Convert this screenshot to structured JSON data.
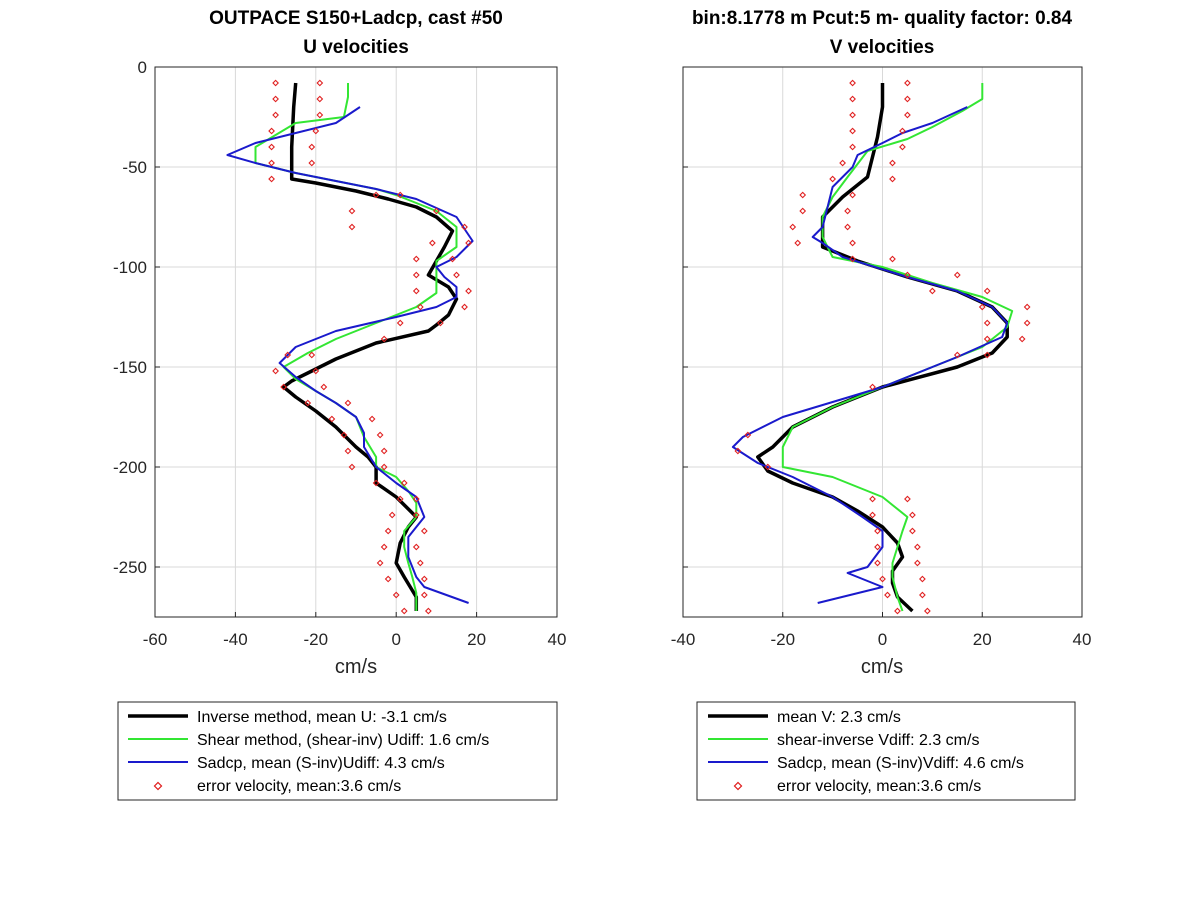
{
  "chart_data": [
    {
      "type": "line",
      "title": "OUTPACE S150+Ladcp, cast #50",
      "subtitle": "U velocities",
      "xlabel": "cm/s",
      "ylabel": "",
      "xlim": [
        -60,
        40
      ],
      "ylim": [
        -275,
        0
      ],
      "xticks": [
        -60,
        -40,
        -20,
        0,
        20,
        40
      ],
      "yticks": [
        0,
        -50,
        -100,
        -150,
        -200,
        -250
      ],
      "grid": true,
      "legend_position": "below",
      "series": [
        {
          "name": "Inverse method, mean U:  -3.1 cm/s",
          "color": "#000000",
          "style": "thick-line",
          "x": [
            -25,
            -25.5,
            -26,
            -26,
            -20,
            -10,
            -2,
            5,
            10,
            14,
            12,
            10,
            8,
            13,
            15,
            13,
            10,
            8,
            -5,
            -15,
            -22,
            -26,
            -28,
            -25,
            -20,
            -15,
            -10,
            -7,
            -5,
            -5,
            0,
            3,
            5,
            3,
            1,
            0,
            2,
            5,
            5
          ],
          "y": [
            -8,
            -20,
            -40,
            -56,
            -58,
            -62,
            -66,
            -70,
            -75,
            -82,
            -90,
            -97,
            -104,
            -110,
            -116,
            -124,
            -129,
            -132,
            -138,
            -146,
            -153,
            -157,
            -160,
            -165,
            -172,
            -180,
            -190,
            -195,
            -200,
            -208,
            -215,
            -221,
            -225,
            -230,
            -238,
            -248,
            -255,
            -265,
            -272
          ]
        },
        {
          "name": "Shear method, (shear-inv)  Udiff:  1.6 cm/s",
          "color": "#33e633",
          "style": "line",
          "x": [
            -12,
            -12,
            -13,
            -25,
            -35,
            -35,
            -25,
            -15,
            -5,
            0,
            5,
            10,
            15,
            15,
            10,
            10,
            10,
            5,
            -5,
            -15,
            -22,
            -28,
            -25,
            -20,
            -15,
            -10,
            -8,
            -5,
            -5,
            0,
            3,
            5,
            5,
            2,
            2,
            3,
            4,
            5,
            5
          ],
          "y": [
            -8,
            -15,
            -25,
            -28,
            -40,
            -48,
            -53,
            -57,
            -61,
            -64,
            -68,
            -72,
            -80,
            -90,
            -97,
            -105,
            -113,
            -120,
            -128,
            -136,
            -143,
            -150,
            -156,
            -162,
            -168,
            -175,
            -185,
            -195,
            -200,
            -205,
            -212,
            -218,
            -225,
            -232,
            -240,
            -248,
            -255,
            -263,
            -272
          ]
        },
        {
          "name": "Sadcp, mean (S-inv)Udiff: 4.3 cm/s",
          "color": "#1a1acc",
          "style": "line",
          "x": [
            -9,
            -15,
            -25,
            -35,
            -42,
            -35,
            -25,
            -15,
            -5,
            5,
            15,
            19,
            15,
            10,
            12,
            15,
            15,
            10,
            0,
            -15,
            -25,
            -29,
            -25,
            -20,
            -15,
            -10,
            -8,
            -8,
            -5,
            0,
            5,
            7,
            5,
            3,
            3,
            5,
            7,
            18
          ],
          "y": [
            -20,
            -28,
            -33,
            -38,
            -44,
            -48,
            -53,
            -57,
            -61,
            -66,
            -75,
            -87,
            -95,
            -100,
            -105,
            -110,
            -115,
            -120,
            -125,
            -132,
            -140,
            -148,
            -155,
            -162,
            -168,
            -175,
            -183,
            -190,
            -200,
            -208,
            -215,
            -225,
            -230,
            -235,
            -245,
            -255,
            -260,
            -268
          ]
        }
      ],
      "error_points": [
        {
          "x": -30,
          "y": -8
        },
        {
          "x": -19,
          "y": -8
        },
        {
          "x": -30,
          "y": -16
        },
        {
          "x": -19,
          "y": -16
        },
        {
          "x": -30,
          "y": -24
        },
        {
          "x": -19,
          "y": -24
        },
        {
          "x": -31,
          "y": -32
        },
        {
          "x": -20,
          "y": -32
        },
        {
          "x": -31,
          "y": -40
        },
        {
          "x": -21,
          "y": -40
        },
        {
          "x": -31,
          "y": -48
        },
        {
          "x": -21,
          "y": -48
        },
        {
          "x": -31,
          "y": -56
        },
        {
          "x": -5,
          "y": -64
        },
        {
          "x": 1,
          "y": -64
        },
        {
          "x": -11,
          "y": -72
        },
        {
          "x": 10,
          "y": -72
        },
        {
          "x": -11,
          "y": -80
        },
        {
          "x": 17,
          "y": -80
        },
        {
          "x": 9,
          "y": -88
        },
        {
          "x": 18,
          "y": -88
        },
        {
          "x": 5,
          "y": -96
        },
        {
          "x": 14,
          "y": -96
        },
        {
          "x": 5,
          "y": -104
        },
        {
          "x": 15,
          "y": -104
        },
        {
          "x": 5,
          "y": -112
        },
        {
          "x": 18,
          "y": -112
        },
        {
          "x": 6,
          "y": -120
        },
        {
          "x": 17,
          "y": -120
        },
        {
          "x": 1,
          "y": -128
        },
        {
          "x": 11,
          "y": -128
        },
        {
          "x": -3,
          "y": -136
        },
        {
          "x": -27,
          "y": -144
        },
        {
          "x": -21,
          "y": -144
        },
        {
          "x": -30,
          "y": -152
        },
        {
          "x": -20,
          "y": -152
        },
        {
          "x": -28,
          "y": -160
        },
        {
          "x": -18,
          "y": -160
        },
        {
          "x": -22,
          "y": -168
        },
        {
          "x": -12,
          "y": -168
        },
        {
          "x": -16,
          "y": -176
        },
        {
          "x": -6,
          "y": -176
        },
        {
          "x": -13,
          "y": -184
        },
        {
          "x": -4,
          "y": -184
        },
        {
          "x": -12,
          "y": -192
        },
        {
          "x": -3,
          "y": -192
        },
        {
          "x": -11,
          "y": -200
        },
        {
          "x": -3,
          "y": -200
        },
        {
          "x": -5,
          "y": -208
        },
        {
          "x": 2,
          "y": -208
        },
        {
          "x": 1,
          "y": -216
        },
        {
          "x": 5,
          "y": -216
        },
        {
          "x": -1,
          "y": -224
        },
        {
          "x": 5,
          "y": -224
        },
        {
          "x": -2,
          "y": -232
        },
        {
          "x": 7,
          "y": -232
        },
        {
          "x": -3,
          "y": -240
        },
        {
          "x": 5,
          "y": -240
        },
        {
          "x": -4,
          "y": -248
        },
        {
          "x": 6,
          "y": -248
        },
        {
          "x": -2,
          "y": -256
        },
        {
          "x": 7,
          "y": -256
        },
        {
          "x": 0,
          "y": -264
        },
        {
          "x": 7,
          "y": -264
        },
        {
          "x": 2,
          "y": -272
        },
        {
          "x": 8,
          "y": -272
        }
      ],
      "error_points_name": "error velocity, mean:3.6 cm/s",
      "error_color": "#e02020"
    },
    {
      "type": "line",
      "title": "bin:8.1778 m  Pcut:5 m- quality factor:  0.84",
      "subtitle": "V velocities",
      "xlabel": "cm/s",
      "ylabel": "",
      "xlim": [
        -40,
        40
      ],
      "ylim": [
        -275,
        0
      ],
      "xticks": [
        -40,
        -20,
        0,
        20,
        40
      ],
      "yticks": [],
      "grid": true,
      "legend_position": "below",
      "series": [
        {
          "name": "mean V:  2.3 cm/s",
          "color": "#000000",
          "style": "thick-line",
          "x": [
            0,
            0,
            -1,
            -2,
            -3,
            -8,
            -12,
            -12,
            -12,
            -5,
            5,
            15,
            22,
            25,
            25,
            22,
            15,
            0,
            -10,
            -18,
            -22,
            -25,
            -23,
            -18,
            -10,
            -5,
            0,
            3,
            4,
            2,
            2,
            3,
            6
          ],
          "y": [
            -8,
            -20,
            -35,
            -45,
            -55,
            -65,
            -75,
            -85,
            -90,
            -97,
            -105,
            -112,
            -120,
            -128,
            -135,
            -143,
            -150,
            -160,
            -170,
            -180,
            -190,
            -195,
            -202,
            -208,
            -215,
            -222,
            -230,
            -238,
            -245,
            -252,
            -258,
            -265,
            -272
          ]
        },
        {
          "name": "shear-inverse Vdiff:  2.3 cm/s",
          "color": "#33e633",
          "style": "line",
          "x": [
            20,
            20,
            16,
            10,
            5,
            -3,
            -7,
            -10,
            -12,
            -12,
            -10,
            0,
            10,
            20,
            26,
            25,
            20,
            10,
            0,
            -10,
            -18,
            -20,
            -20,
            -10,
            0,
            5,
            4,
            3,
            2,
            2,
            3,
            4
          ],
          "y": [
            -8,
            -16,
            -22,
            -30,
            -36,
            -42,
            -55,
            -65,
            -75,
            -85,
            -95,
            -100,
            -108,
            -115,
            -122,
            -130,
            -140,
            -150,
            -160,
            -170,
            -180,
            -190,
            -200,
            -205,
            -215,
            -225,
            -232,
            -240,
            -248,
            -255,
            -265,
            -272
          ]
        },
        {
          "name": "Sadcp, mean (S-inv)Vdiff: 4.6 cm/s",
          "color": "#1a1acc",
          "style": "line",
          "x": [
            17,
            10,
            4,
            0,
            -5,
            -6,
            -10,
            -11,
            -12,
            -14,
            -12,
            -8,
            5,
            15,
            22,
            25,
            24,
            15,
            0,
            -20,
            -28,
            -30,
            -25,
            -18,
            -10,
            -4,
            0,
            0,
            -3,
            -7,
            0,
            -13
          ],
          "y": [
            -20,
            -28,
            -33,
            -38,
            -44,
            -50,
            -60,
            -70,
            -80,
            -85,
            -88,
            -95,
            -105,
            -112,
            -120,
            -128,
            -135,
            -145,
            -160,
            -175,
            -185,
            -190,
            -198,
            -205,
            -215,
            -225,
            -232,
            -240,
            -250,
            -253,
            -260,
            -268
          ]
        }
      ],
      "error_points": [
        {
          "x": -6,
          "y": -8
        },
        {
          "x": 5,
          "y": -8
        },
        {
          "x": -6,
          "y": -16
        },
        {
          "x": 5,
          "y": -16
        },
        {
          "x": -6,
          "y": -24
        },
        {
          "x": 5,
          "y": -24
        },
        {
          "x": -6,
          "y": -32
        },
        {
          "x": 4,
          "y": -32
        },
        {
          "x": -6,
          "y": -40
        },
        {
          "x": 4,
          "y": -40
        },
        {
          "x": -8,
          "y": -48
        },
        {
          "x": 2,
          "y": -48
        },
        {
          "x": -10,
          "y": -56
        },
        {
          "x": 2,
          "y": -56
        },
        {
          "x": -16,
          "y": -64
        },
        {
          "x": -6,
          "y": -64
        },
        {
          "x": -16,
          "y": -72
        },
        {
          "x": -7,
          "y": -72
        },
        {
          "x": -18,
          "y": -80
        },
        {
          "x": -7,
          "y": -80
        },
        {
          "x": -17,
          "y": -88
        },
        {
          "x": -6,
          "y": -88
        },
        {
          "x": -6,
          "y": -96
        },
        {
          "x": 2,
          "y": -96
        },
        {
          "x": 5,
          "y": -104
        },
        {
          "x": 15,
          "y": -104
        },
        {
          "x": 10,
          "y": -112
        },
        {
          "x": 21,
          "y": -112
        },
        {
          "x": 20,
          "y": -120
        },
        {
          "x": 29,
          "y": -120
        },
        {
          "x": 21,
          "y": -128
        },
        {
          "x": 29,
          "y": -128
        },
        {
          "x": 21,
          "y": -136
        },
        {
          "x": 28,
          "y": -136
        },
        {
          "x": 15,
          "y": -144
        },
        {
          "x": 21,
          "y": -144
        },
        {
          "x": -2,
          "y": -160
        },
        {
          "x": -27,
          "y": -184
        },
        {
          "x": -29,
          "y": -192
        },
        {
          "x": -23,
          "y": -200
        },
        {
          "x": -2,
          "y": -216
        },
        {
          "x": 5,
          "y": -216
        },
        {
          "x": -2,
          "y": -224
        },
        {
          "x": 6,
          "y": -224
        },
        {
          "x": -1,
          "y": -232
        },
        {
          "x": 6,
          "y": -232
        },
        {
          "x": -1,
          "y": -240
        },
        {
          "x": 7,
          "y": -240
        },
        {
          "x": -1,
          "y": -248
        },
        {
          "x": 7,
          "y": -248
        },
        {
          "x": 0,
          "y": -256
        },
        {
          "x": 8,
          "y": -256
        },
        {
          "x": 1,
          "y": -264
        },
        {
          "x": 8,
          "y": -264
        },
        {
          "x": 3,
          "y": -272
        },
        {
          "x": 9,
          "y": -272
        }
      ],
      "error_points_name": "error velocity, mean:3.6 cm/s",
      "error_color": "#e02020"
    }
  ]
}
